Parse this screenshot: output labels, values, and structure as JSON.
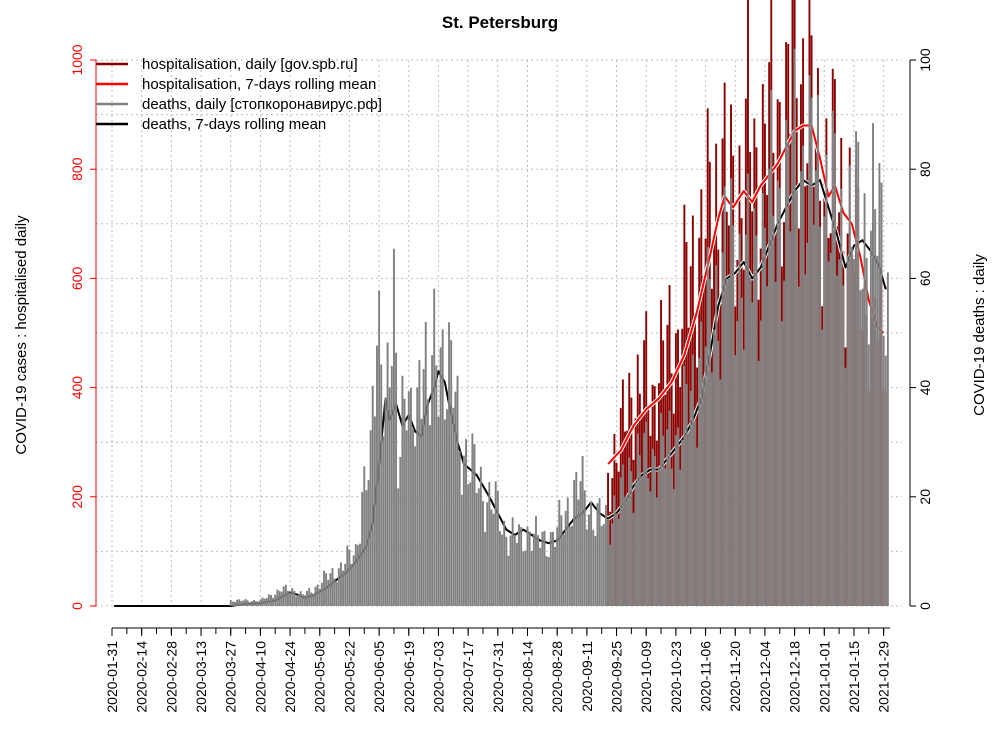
{
  "colors": {
    "hosp_daily": "#8b0000",
    "hosp_mean": "#ff0000",
    "deaths_daily": "#808080",
    "deaths_mean": "#000000",
    "left_axis": "#ff0000",
    "right_axis": "#000000",
    "grid": "#bebebe"
  },
  "chart_data": {
    "type": "bar",
    "title": "St. Petersburg",
    "ylabel_left": "COVID-19 cases : hospitalised daily",
    "ylabel_right": "COVID-19 deaths : daily",
    "xlabel": "",
    "x_start": "2020-01-31",
    "x_end": "2021-02-01",
    "ylim_left": [
      0,
      1000
    ],
    "ylim_right": [
      0,
      100
    ],
    "yticks_left": [
      "0",
      "200",
      "400",
      "600",
      "800",
      "1000"
    ],
    "yticks_right": [
      "0",
      "20",
      "40",
      "60",
      "80",
      "100"
    ],
    "xticks": [
      "2020-01-31",
      "2020-02-14",
      "2020-02-28",
      "2020-03-13",
      "2020-03-27",
      "2020-04-10",
      "2020-04-24",
      "2020-05-08",
      "2020-05-22",
      "2020-06-05",
      "2020-06-19",
      "2020-07-03",
      "2020-07-17",
      "2020-07-31",
      "2020-08-14",
      "2020-08-28",
      "2020-09-11",
      "2020-09-25",
      "2020-10-09",
      "2020-10-23",
      "2020-11-06",
      "2020-11-20",
      "2020-12-04",
      "2020-12-18",
      "2021-01-01",
      "2021-01-15",
      "2021-01-29"
    ],
    "grid": true,
    "legend_position": "top-left",
    "series": [
      {
        "name": "hospitalisation, daily [gov.spb.ru]",
        "axis": "left",
        "kind": "bar",
        "points": [
          [
            "2020-09-21",
            240
          ],
          [
            "2020-09-24",
            280
          ],
          [
            "2020-09-27",
            300
          ],
          [
            "2020-09-30",
            360
          ],
          [
            "2020-10-03",
            400
          ],
          [
            "2020-10-06",
            380
          ],
          [
            "2020-10-09",
            420
          ],
          [
            "2020-10-12",
            380
          ],
          [
            "2020-10-15",
            450
          ],
          [
            "2020-10-18",
            430
          ],
          [
            "2020-10-21",
            500
          ],
          [
            "2020-10-24",
            480
          ],
          [
            "2020-10-27",
            560
          ],
          [
            "2020-10-30",
            600
          ],
          [
            "2020-11-02",
            640
          ],
          [
            "2020-11-05",
            680
          ],
          [
            "2020-11-08",
            700
          ],
          [
            "2020-11-11",
            760
          ],
          [
            "2020-11-14",
            800
          ],
          [
            "2020-11-17",
            720
          ],
          [
            "2020-11-20",
            740
          ],
          [
            "2020-11-23",
            780
          ],
          [
            "2020-11-26",
            860
          ],
          [
            "2020-11-29",
            760
          ],
          [
            "2020-12-02",
            820
          ],
          [
            "2020-12-05",
            900
          ],
          [
            "2020-12-08",
            830
          ],
          [
            "2020-12-11",
            880
          ],
          [
            "2020-12-14",
            870
          ],
          [
            "2020-12-17",
            1020
          ],
          [
            "2020-12-20",
            940
          ],
          [
            "2020-12-23",
            1000
          ],
          [
            "2020-12-26",
            870
          ],
          [
            "2020-12-29",
            800
          ],
          [
            "2021-01-01",
            820
          ],
          [
            "2021-01-04",
            760
          ],
          [
            "2021-01-07",
            790
          ],
          [
            "2021-01-10",
            720
          ],
          [
            "2021-01-13",
            700
          ],
          [
            "2021-01-16",
            640
          ],
          [
            "2021-01-19",
            600
          ],
          [
            "2021-01-22",
            560
          ],
          [
            "2021-01-25",
            540
          ],
          [
            "2021-01-28",
            510
          ],
          [
            "2021-01-31",
            520
          ]
        ]
      },
      {
        "name": "hospitalisation, 7-days rolling mean",
        "axis": "left",
        "kind": "line",
        "points": [
          [
            "2020-09-21",
            260
          ],
          [
            "2020-09-27",
            285
          ],
          [
            "2020-10-03",
            330
          ],
          [
            "2020-10-09",
            360
          ],
          [
            "2020-10-15",
            380
          ],
          [
            "2020-10-21",
            410
          ],
          [
            "2020-10-27",
            460
          ],
          [
            "2020-11-02",
            540
          ],
          [
            "2020-11-08",
            640
          ],
          [
            "2020-11-12",
            710
          ],
          [
            "2020-11-15",
            750
          ],
          [
            "2020-11-19",
            730
          ],
          [
            "2020-11-24",
            760
          ],
          [
            "2020-11-28",
            740
          ],
          [
            "2020-12-02",
            770
          ],
          [
            "2020-12-06",
            790
          ],
          [
            "2020-12-10",
            810
          ],
          [
            "2020-12-14",
            840
          ],
          [
            "2020-12-18",
            870
          ],
          [
            "2020-12-22",
            880
          ],
          [
            "2020-12-26",
            880
          ],
          [
            "2020-12-30",
            820
          ],
          [
            "2021-01-03",
            750
          ],
          [
            "2021-01-06",
            770
          ],
          [
            "2021-01-10",
            720
          ],
          [
            "2021-01-14",
            700
          ],
          [
            "2021-01-18",
            640
          ],
          [
            "2021-01-22",
            560
          ],
          [
            "2021-01-26",
            510
          ],
          [
            "2021-01-29",
            500
          ]
        ]
      },
      {
        "name": "deaths, daily [стопкоронавирус.рф]",
        "axis": "right",
        "kind": "bar",
        "points": [
          [
            "2020-03-27",
            1
          ],
          [
            "2020-04-01",
            1
          ],
          [
            "2020-04-05",
            1
          ],
          [
            "2020-04-10",
            1
          ],
          [
            "2020-04-15",
            2
          ],
          [
            "2020-04-20",
            3
          ],
          [
            "2020-04-25",
            3
          ],
          [
            "2020-04-30",
            2
          ],
          [
            "2020-05-05",
            3
          ],
          [
            "2020-05-10",
            5
          ],
          [
            "2020-05-15",
            6
          ],
          [
            "2020-05-20",
            8
          ],
          [
            "2020-05-25",
            10
          ],
          [
            "2020-05-28",
            20
          ],
          [
            "2020-06-01",
            25
          ],
          [
            "2020-06-04",
            55
          ],
          [
            "2020-06-06",
            50
          ],
          [
            "2020-06-08",
            35
          ],
          [
            "2020-06-10",
            40
          ],
          [
            "2020-06-12",
            54
          ],
          [
            "2020-06-14",
            30
          ],
          [
            "2020-06-16",
            38
          ],
          [
            "2020-06-18",
            40
          ],
          [
            "2020-06-20",
            30
          ],
          [
            "2020-06-23",
            36
          ],
          [
            "2020-06-26",
            55
          ],
          [
            "2020-06-28",
            35
          ],
          [
            "2020-07-01",
            44
          ],
          [
            "2020-07-03",
            45
          ],
          [
            "2020-07-05",
            48
          ],
          [
            "2020-07-07",
            44
          ],
          [
            "2020-07-10",
            40
          ],
          [
            "2020-07-13",
            30
          ],
          [
            "2020-07-16",
            28
          ],
          [
            "2020-07-19",
            25
          ],
          [
            "2020-07-22",
            22
          ],
          [
            "2020-07-26",
            20
          ],
          [
            "2020-07-30",
            18
          ],
          [
            "2020-08-03",
            14
          ],
          [
            "2020-08-07",
            13
          ],
          [
            "2020-08-11",
            12
          ],
          [
            "2020-08-15",
            14
          ],
          [
            "2020-08-19",
            12
          ],
          [
            "2020-08-23",
            12
          ],
          [
            "2020-08-27",
            13
          ],
          [
            "2020-08-31",
            16
          ],
          [
            "2020-09-04",
            20
          ],
          [
            "2020-09-08",
            22
          ],
          [
            "2020-09-12",
            18
          ],
          [
            "2020-09-16",
            16
          ],
          [
            "2020-09-20",
            15
          ],
          [
            "2020-09-24",
            18
          ],
          [
            "2020-09-28",
            20
          ],
          [
            "2020-10-02",
            25
          ],
          [
            "2020-10-06",
            27
          ],
          [
            "2020-10-10",
            26
          ],
          [
            "2020-10-14",
            28
          ],
          [
            "2020-10-18",
            28
          ],
          [
            "2020-10-22",
            30
          ],
          [
            "2020-10-26",
            32
          ],
          [
            "2020-10-30",
            38
          ],
          [
            "2020-11-03",
            44
          ],
          [
            "2020-11-07",
            50
          ],
          [
            "2020-11-11",
            56
          ],
          [
            "2020-11-15",
            62
          ],
          [
            "2020-11-19",
            62
          ],
          [
            "2020-11-23",
            62
          ],
          [
            "2020-11-27",
            60
          ],
          [
            "2020-12-01",
            64
          ],
          [
            "2020-12-05",
            70
          ],
          [
            "2020-12-09",
            72
          ],
          [
            "2020-12-13",
            74
          ],
          [
            "2020-12-17",
            78
          ],
          [
            "2020-12-21",
            80
          ],
          [
            "2020-12-25",
            78
          ],
          [
            "2020-12-29",
            76
          ],
          [
            "2021-01-02",
            74
          ],
          [
            "2021-01-06",
            70
          ],
          [
            "2021-01-10",
            65
          ],
          [
            "2021-01-14",
            68
          ],
          [
            "2021-01-18",
            70
          ],
          [
            "2021-01-22",
            68
          ],
          [
            "2021-01-26",
            70
          ],
          [
            "2021-01-29",
            64
          ],
          [
            "2021-02-01",
            53
          ]
        ]
      },
      {
        "name": "deaths, 7-days rolling mean",
        "axis": "right",
        "kind": "line",
        "points": [
          [
            "2020-02-01",
            0
          ],
          [
            "2020-03-27",
            0
          ],
          [
            "2020-04-03",
            0.4
          ],
          [
            "2020-04-10",
            0.5
          ],
          [
            "2020-04-17",
            1
          ],
          [
            "2020-04-24",
            2.5
          ],
          [
            "2020-04-28",
            2
          ],
          [
            "2020-05-01",
            1.5
          ],
          [
            "2020-05-05",
            2
          ],
          [
            "2020-05-10",
            3
          ],
          [
            "2020-05-15",
            4.5
          ],
          [
            "2020-05-20",
            6
          ],
          [
            "2020-05-25",
            8
          ],
          [
            "2020-05-30",
            11
          ],
          [
            "2020-06-02",
            15
          ],
          [
            "2020-06-05",
            26
          ],
          [
            "2020-06-08",
            38
          ],
          [
            "2020-06-10",
            34
          ],
          [
            "2020-06-13",
            37
          ],
          [
            "2020-06-16",
            33
          ],
          [
            "2020-06-19",
            35
          ],
          [
            "2020-06-22",
            32
          ],
          [
            "2020-06-25",
            31
          ],
          [
            "2020-06-28",
            37
          ],
          [
            "2020-07-01",
            40
          ],
          [
            "2020-07-03",
            43
          ],
          [
            "2020-07-06",
            41
          ],
          [
            "2020-07-09",
            35
          ],
          [
            "2020-07-12",
            30
          ],
          [
            "2020-07-15",
            26
          ],
          [
            "2020-07-18",
            25
          ],
          [
            "2020-07-21",
            24
          ],
          [
            "2020-07-24",
            22
          ],
          [
            "2020-07-27",
            20
          ],
          [
            "2020-07-31",
            17
          ],
          [
            "2020-08-04",
            14
          ],
          [
            "2020-08-08",
            13
          ],
          [
            "2020-08-12",
            14
          ],
          [
            "2020-08-16",
            13
          ],
          [
            "2020-08-20",
            12
          ],
          [
            "2020-08-24",
            11.5
          ],
          [
            "2020-08-28",
            12
          ],
          [
            "2020-09-01",
            14
          ],
          [
            "2020-09-05",
            16
          ],
          [
            "2020-09-09",
            17
          ],
          [
            "2020-09-13",
            19
          ],
          [
            "2020-09-17",
            17
          ],
          [
            "2020-09-21",
            16
          ],
          [
            "2020-09-25",
            17
          ],
          [
            "2020-09-29",
            19
          ],
          [
            "2020-10-03",
            22
          ],
          [
            "2020-10-07",
            24
          ],
          [
            "2020-10-11",
            25
          ],
          [
            "2020-10-15",
            25
          ],
          [
            "2020-10-19",
            27
          ],
          [
            "2020-10-23",
            29
          ],
          [
            "2020-10-27",
            31
          ],
          [
            "2020-10-31",
            34
          ],
          [
            "2020-11-04",
            38
          ],
          [
            "2020-11-08",
            46
          ],
          [
            "2020-11-12",
            55
          ],
          [
            "2020-11-16",
            60
          ],
          [
            "2020-11-20",
            61
          ],
          [
            "2020-11-24",
            63
          ],
          [
            "2020-11-28",
            60
          ],
          [
            "2020-12-02",
            62
          ],
          [
            "2020-12-06",
            66
          ],
          [
            "2020-12-10",
            70
          ],
          [
            "2020-12-14",
            73
          ],
          [
            "2020-12-18",
            76
          ],
          [
            "2020-12-22",
            78
          ],
          [
            "2020-12-26",
            77
          ],
          [
            "2020-12-30",
            78
          ],
          [
            "2021-01-03",
            73
          ],
          [
            "2021-01-07",
            68
          ],
          [
            "2021-01-11",
            62
          ],
          [
            "2021-01-15",
            66
          ],
          [
            "2021-01-19",
            67
          ],
          [
            "2021-01-23",
            65
          ],
          [
            "2021-01-27",
            62
          ],
          [
            "2021-01-30",
            58
          ]
        ]
      }
    ]
  }
}
